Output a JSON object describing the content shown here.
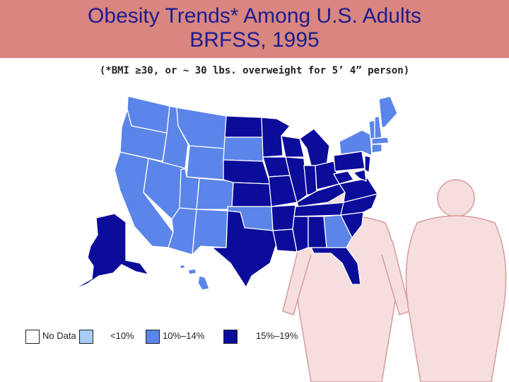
{
  "title": {
    "line1": "Obesity Trends* Among U.S. Adults",
    "line2": "BRFSS, 1995"
  },
  "subtitle": "(*BMI ≥30, or ~ 30 lbs. overweight for 5’ 4” person)",
  "legend": [
    {
      "label": "No Data",
      "color": "#ffffff"
    },
    {
      "label": "<10%",
      "color": "#a9cdf5"
    },
    {
      "label": "10%–14%",
      "color": "#5b85e8"
    },
    {
      "label": "15%–19%",
      "color": "#0c0c9a"
    }
  ],
  "colors": {
    "title_bg": "#d98580",
    "title_text": "#1c1c8c",
    "figure_fill": "#f6dede",
    "figure_stroke": "#d99b9b",
    "border": "#ffffff"
  }
}
